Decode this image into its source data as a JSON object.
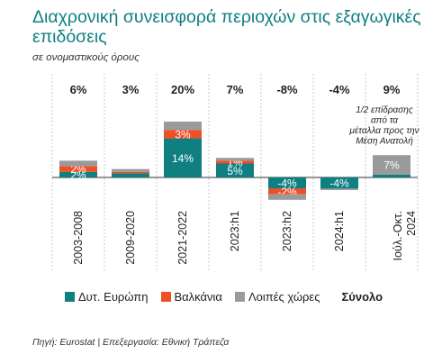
{
  "title": "Διαχρονική συνεισφορά περιοχών στις εξαγωγικές επιδόσεις",
  "subtitle": "σε ονομαστικούς όρους",
  "source": "Πηγή: Eurostat | Επεξεργασία: Εθνική Τράπεζα",
  "colors": {
    "western_europe": "#0f7f82",
    "balkans": "#f04e23",
    "other": "#9a9a9a"
  },
  "legend": {
    "items": [
      "Δυτ. Ευρώπη",
      "Βαλκάνια",
      "Λοιπές χώρες"
    ],
    "total": "Σύνολο"
  },
  "chart_data": {
    "type": "bar",
    "stacked": true,
    "categories": [
      "2003-2008",
      "2009-2020",
      "2021-2022",
      "2023:h1",
      "2023:h2",
      "2024:h1",
      "Ιούλ.-Οκτ. 2024"
    ],
    "series": [
      {
        "name": "Δυτ. Ευρώπη",
        "values": [
          2,
          1.5,
          14,
          5,
          -4,
          -4,
          1
        ]
      },
      {
        "name": "Βαλκάνια",
        "values": [
          2,
          0.5,
          3,
          1,
          -2,
          0,
          0
        ]
      },
      {
        "name": "Λοιπές χώρες",
        "values": [
          2,
          1,
          3,
          1,
          -2,
          -0.5,
          7
        ]
      }
    ],
    "segment_labels": [
      [
        "2%",
        "",
        "14%",
        "5%",
        "-4%",
        "-4%",
        ""
      ],
      [
        "2%",
        "",
        "3%",
        "1%",
        "-2%",
        "",
        ""
      ],
      [
        "",
        "",
        "",
        "",
        "",
        "",
        "7%"
      ]
    ],
    "totals": [
      "6%",
      "3%",
      "20%",
      "7%",
      "-8%",
      "-4%",
      "9%"
    ],
    "annotation": "1/2 επίδρασης από τα μέταλλα προς την Μέση Ανατολή",
    "ylim": [
      -12,
      20
    ]
  }
}
